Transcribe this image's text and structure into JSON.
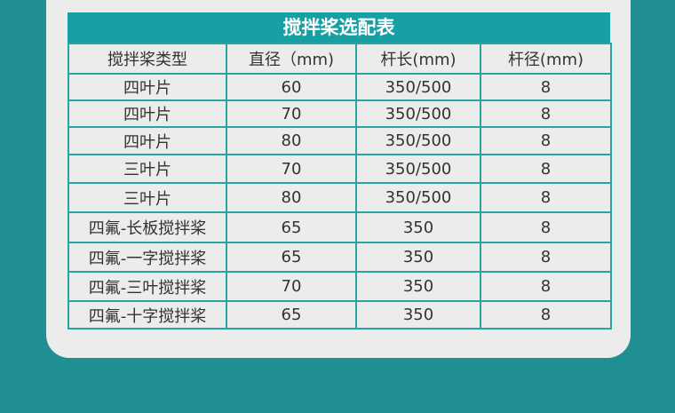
{
  "title": "搅拌桨选配表",
  "headers": [
    "搅拌桨类型",
    "直径（mm)",
    "杆长(mm)",
    "杆径(mm)"
  ],
  "rows": [
    [
      "四叶片",
      "60",
      "350/500",
      "8"
    ],
    [
      "四叶片",
      "70",
      "350/500",
      "8"
    ],
    [
      "四叶片",
      "80",
      "350/500",
      "8"
    ],
    [
      "三叶片",
      "70",
      "350/500",
      "8"
    ],
    [
      "三叶片",
      "80",
      "350/500",
      "8"
    ],
    [
      "四氟-长板搅拌桨",
      "65",
      "350",
      "8"
    ],
    [
      "四氟-一字搅拌桨",
      "65",
      "350",
      "8"
    ],
    [
      "四氟-三叶搅拌桨",
      "70",
      "350",
      "8"
    ],
    [
      "四氟-十字搅拌桨",
      "65",
      "350",
      "8"
    ]
  ],
  "colors": {
    "background": "#1f8f93",
    "title_bar": "#17a0a3",
    "card": "#ececec",
    "border": "#2aa3a6"
  }
}
